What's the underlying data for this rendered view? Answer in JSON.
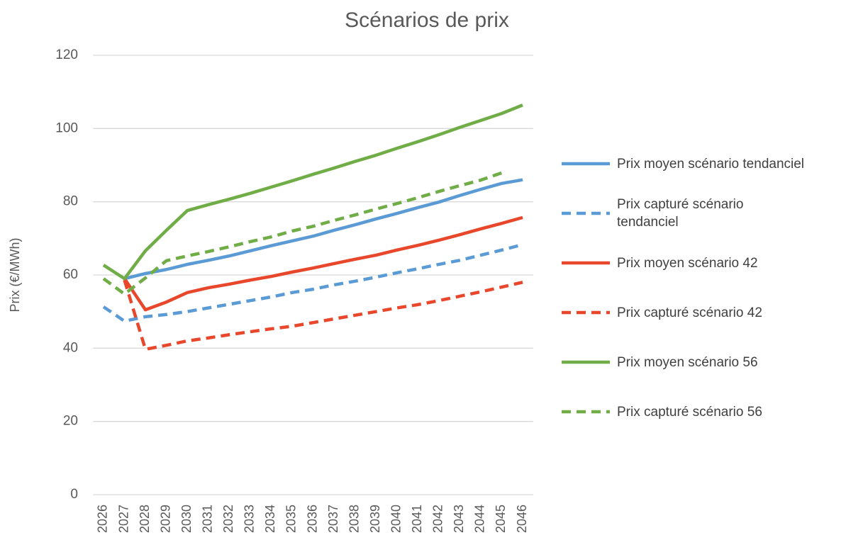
{
  "chart_data": {
    "type": "line",
    "title": "Scénarios de prix",
    "y_label": "Prix (€/MWh)",
    "categories": [
      "2026",
      "2027",
      "2028",
      "2029",
      "2030",
      "2031",
      "2032",
      "2033",
      "2034",
      "2035",
      "2036",
      "2037",
      "2038",
      "2039",
      "2040",
      "2041",
      "2042",
      "2043",
      "2044",
      "2045",
      "2046"
    ],
    "ylim": [
      0,
      120
    ],
    "yticks": [
      0,
      20,
      40,
      60,
      80,
      100,
      120
    ],
    "grid": true,
    "legend": "right",
    "series": [
      {
        "name": "Prix moyen scénario tendanciel",
        "color": "#5b9bd5",
        "dashed": false,
        "values": [
          null,
          59,
          60.4,
          61.5,
          62.9,
          64,
          65.2,
          66.6,
          68,
          69.3,
          70.6,
          72.2,
          73.7,
          75.3,
          76.8,
          78.4,
          79.9,
          81.7,
          83.4,
          85,
          86
        ]
      },
      {
        "name": "Prix capturé scénario tendanciel",
        "color": "#5b9bd5",
        "dashed": true,
        "values": [
          51.3,
          47.4,
          48.6,
          49.2,
          50,
          51,
          52,
          53,
          54,
          55.2,
          56.1,
          57.3,
          58.3,
          59.4,
          60.6,
          61.7,
          62.9,
          64,
          65.4,
          66.8,
          68.3
        ]
      },
      {
        "name": "Prix moyen scénario 42",
        "color": "#e8472b",
        "dashed": false,
        "values": [
          null,
          59,
          50.5,
          52.6,
          55.2,
          56.5,
          57.5,
          58.6,
          59.6,
          60.8,
          61.9,
          63.1,
          64.3,
          65.4,
          66.8,
          68.1,
          69.5,
          71,
          72.6,
          74.1,
          75.7
        ]
      },
      {
        "name": "Prix capturé scénario 42",
        "color": "#e8472b",
        "dashed": true,
        "values": [
          null,
          58.6,
          39.7,
          40.8,
          42,
          42.8,
          43.7,
          44.5,
          45.3,
          46,
          47,
          48,
          49,
          50,
          51,
          51.9,
          53,
          54.2,
          55.4,
          56.7,
          58
        ]
      },
      {
        "name": "Prix moyen scénario 56",
        "color": "#70ad47",
        "dashed": false,
        "values": [
          62.7,
          59,
          66.6,
          72.2,
          77.6,
          79.2,
          80.7,
          82.3,
          84,
          85.7,
          87.5,
          89.2,
          91,
          92.7,
          94.6,
          96.4,
          98.3,
          100.3,
          102.2,
          104.1,
          106.4
        ]
      },
      {
        "name": "Prix capturé scénario 56",
        "color": "#70ad47",
        "dashed": true,
        "values": [
          59,
          54.8,
          59.2,
          63.9,
          65.2,
          66.4,
          67.7,
          69.1,
          70.4,
          72,
          73.3,
          74.9,
          76.4,
          78,
          79.5,
          81.1,
          82.8,
          84.4,
          85.9,
          87.9,
          null
        ]
      }
    ]
  }
}
